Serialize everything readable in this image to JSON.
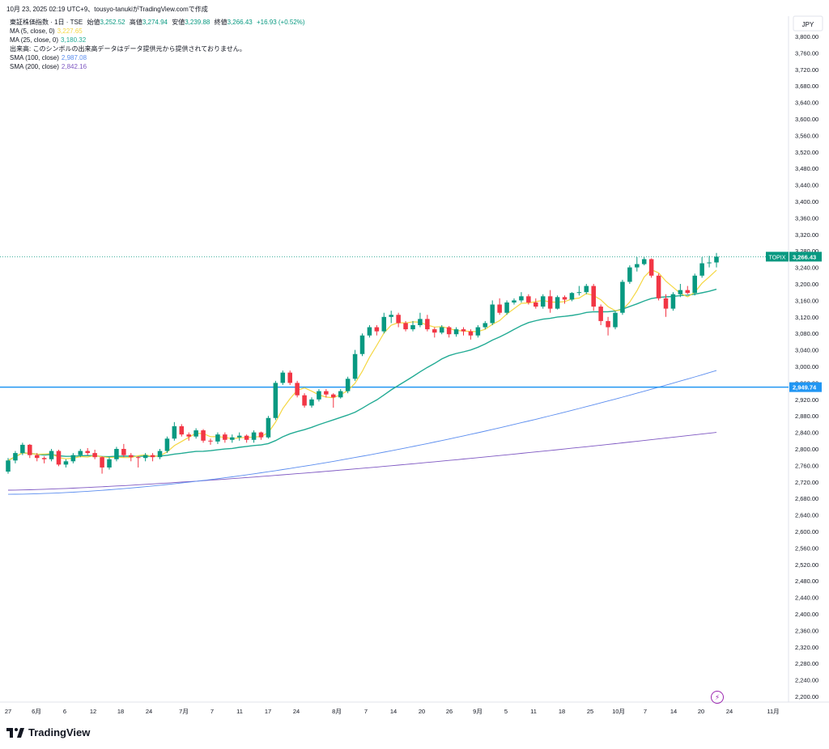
{
  "header": {
    "attribution": "10月 23, 2025 02:19 UTC+9、tousyo-tanukiがTradingView.comで作成"
  },
  "legend": {
    "symbol_line": {
      "name": "東証株価指数 · 1日 · TSE",
      "open_label": "始値",
      "open": "3,252.52",
      "high_label": "高値",
      "high": "3,274.94",
      "low_label": "安値",
      "low": "3,239.88",
      "close_label": "終値",
      "close": "3,266.43",
      "change": "+16.93 (+0.52%)"
    },
    "indicators": [
      {
        "label": "MA (5, close, 0)",
        "value": "3,227.65",
        "color": "#f5d742"
      },
      {
        "label": "MA (25, close, 0)",
        "value": "3,180.32",
        "color": "#22ab94"
      },
      {
        "label": "出来高: このシンボルの出来高データはデータ提供元から提供されておりません。",
        "value": "",
        "color": "#131722"
      },
      {
        "label": "SMA (100, close)",
        "value": "2,987.08",
        "color": "#5b8def"
      },
      {
        "label": "SMA (200, close)",
        "value": "2,842.16",
        "color": "#7e57c2"
      }
    ]
  },
  "brand": {
    "name": "TradingView"
  },
  "chart_data": {
    "type": "candlestick",
    "currency": "JPY",
    "y_range": [
      2180,
      3820
    ],
    "y_ticks": [
      2200,
      2240,
      2280,
      2320,
      2360,
      2400,
      2440,
      2480,
      2520,
      2560,
      2600,
      2640,
      2680,
      2720,
      2760,
      2800,
      2840,
      2880,
      2920,
      2960,
      3000,
      3040,
      3080,
      3120,
      3160,
      3200,
      3240,
      3280,
      3320,
      3360,
      3400,
      3440,
      3480,
      3520,
      3560,
      3600,
      3640,
      3680,
      3720,
      3760,
      3800
    ],
    "x_ticks": [
      "27",
      "6月",
      "6",
      "12",
      "18",
      "24",
      "7月",
      "7",
      "11",
      "17",
      "24",
      "8月",
      "7",
      "14",
      "20",
      "26",
      "9月",
      "5",
      "11",
      "18",
      "25",
      "10月",
      "7",
      "14",
      "20",
      "24",
      "11月"
    ],
    "last_price_label": {
      "name": "TOPIX",
      "value": "3,266.43"
    },
    "horizontal_line": {
      "value": 2949.74,
      "label": "2,949.74",
      "color": "#2196f3"
    },
    "candles": [
      [
        2745,
        2778,
        2740,
        2772
      ],
      [
        2772,
        2795,
        2765,
        2790
      ],
      [
        2790,
        2815,
        2785,
        2810
      ],
      [
        2810,
        2812,
        2778,
        2785
      ],
      [
        2785,
        2790,
        2770,
        2778
      ],
      [
        2778,
        2782,
        2765,
        2775
      ],
      [
        2775,
        2800,
        2770,
        2795
      ],
      [
        2795,
        2798,
        2758,
        2762
      ],
      [
        2762,
        2775,
        2755,
        2770
      ],
      [
        2770,
        2790,
        2765,
        2785
      ],
      [
        2785,
        2800,
        2780,
        2795
      ],
      [
        2795,
        2802,
        2785,
        2790
      ],
      [
        2790,
        2798,
        2775,
        2780
      ],
      [
        2780,
        2782,
        2740,
        2755
      ],
      [
        2755,
        2780,
        2750,
        2775
      ],
      [
        2775,
        2805,
        2770,
        2800
      ],
      [
        2800,
        2812,
        2780,
        2785
      ],
      [
        2785,
        2790,
        2770,
        2780
      ],
      [
        2780,
        2782,
        2755,
        2778
      ],
      [
        2778,
        2790,
        2770,
        2785
      ],
      [
        2785,
        2790,
        2770,
        2780
      ],
      [
        2780,
        2800,
        2775,
        2795
      ],
      [
        2795,
        2830,
        2790,
        2825
      ],
      [
        2825,
        2865,
        2820,
        2855
      ],
      [
        2855,
        2860,
        2830,
        2835
      ],
      [
        2835,
        2840,
        2820,
        2830
      ],
      [
        2830,
        2850,
        2825,
        2845
      ],
      [
        2845,
        2848,
        2815,
        2820
      ],
      [
        2820,
        2825,
        2810,
        2818
      ],
      [
        2818,
        2840,
        2812,
        2835
      ],
      [
        2835,
        2840,
        2815,
        2822
      ],
      [
        2822,
        2835,
        2815,
        2828
      ],
      [
        2828,
        2840,
        2820,
        2832
      ],
      [
        2832,
        2835,
        2815,
        2822
      ],
      [
        2822,
        2845,
        2815,
        2840
      ],
      [
        2840,
        2842,
        2822,
        2828
      ],
      [
        2828,
        2880,
        2825,
        2875
      ],
      [
        2875,
        2965,
        2870,
        2960
      ],
      [
        2960,
        2990,
        2955,
        2985
      ],
      [
        2985,
        2990,
        2955,
        2960
      ],
      [
        2960,
        2965,
        2925,
        2930
      ],
      [
        2930,
        2935,
        2900,
        2905
      ],
      [
        2905,
        2925,
        2900,
        2920
      ],
      [
        2920,
        2945,
        2915,
        2940
      ],
      [
        2940,
        2945,
        2925,
        2932
      ],
      [
        2932,
        2935,
        2900,
        2925
      ],
      [
        2925,
        2945,
        2922,
        2940
      ],
      [
        2940,
        2975,
        2935,
        2970
      ],
      [
        2970,
        3040,
        2965,
        3030
      ],
      [
        3030,
        3080,
        3025,
        3075
      ],
      [
        3075,
        3100,
        3070,
        3095
      ],
      [
        3095,
        3100,
        3075,
        3085
      ],
      [
        3085,
        3130,
        3080,
        3120
      ],
      [
        3120,
        3135,
        3105,
        3125
      ],
      [
        3125,
        3130,
        3095,
        3105
      ],
      [
        3105,
        3110,
        3085,
        3090
      ],
      [
        3090,
        3110,
        3085,
        3100
      ],
      [
        3100,
        3130,
        3095,
        3115
      ],
      [
        3115,
        3125,
        3085,
        3090
      ],
      [
        3090,
        3095,
        3070,
        3082
      ],
      [
        3082,
        3100,
        3078,
        3095
      ],
      [
        3095,
        3098,
        3070,
        3078
      ],
      [
        3078,
        3095,
        3072,
        3090
      ],
      [
        3090,
        3095,
        3075,
        3085
      ],
      [
        3085,
        3090,
        3065,
        3075
      ],
      [
        3075,
        3100,
        3070,
        3095
      ],
      [
        3095,
        3110,
        3090,
        3105
      ],
      [
        3105,
        3160,
        3100,
        3150
      ],
      [
        3150,
        3165,
        3125,
        3130
      ],
      [
        3130,
        3160,
        3125,
        3155
      ],
      [
        3155,
        3165,
        3150,
        3160
      ],
      [
        3160,
        3180,
        3155,
        3170
      ],
      [
        3170,
        3175,
        3150,
        3155
      ],
      [
        3155,
        3165,
        3140,
        3145
      ],
      [
        3145,
        3175,
        3140,
        3170
      ],
      [
        3170,
        3185,
        3130,
        3140
      ],
      [
        3140,
        3172,
        3138,
        3168
      ],
      [
        3168,
        3172,
        3152,
        3162
      ],
      [
        3162,
        3180,
        3158,
        3178
      ],
      [
        3178,
        3195,
        3172,
        3180
      ],
      [
        3180,
        3200,
        3175,
        3195
      ],
      [
        3195,
        3200,
        3135,
        3145
      ],
      [
        3145,
        3150,
        3100,
        3110
      ],
      [
        3110,
        3120,
        3075,
        3095
      ],
      [
        3095,
        3135,
        3090,
        3130
      ],
      [
        3130,
        3210,
        3125,
        3205
      ],
      [
        3205,
        3245,
        3200,
        3240
      ],
      [
        3240,
        3265,
        3230,
        3248
      ],
      [
        3248,
        3265,
        3245,
        3260
      ],
      [
        3260,
        3262,
        3215,
        3220
      ],
      [
        3220,
        3225,
        3160,
        3165
      ],
      [
        3165,
        3175,
        3120,
        3140
      ],
      [
        3140,
        3180,
        3135,
        3175
      ],
      [
        3175,
        3200,
        3168,
        3185
      ],
      [
        3185,
        3195,
        3175,
        3178
      ],
      [
        3178,
        3225,
        3172,
        3220
      ],
      [
        3220,
        3265,
        3215,
        3250
      ],
      [
        3250,
        3268,
        3240,
        3252
      ],
      [
        3252,
        3275,
        3240,
        3266
      ]
    ]
  }
}
